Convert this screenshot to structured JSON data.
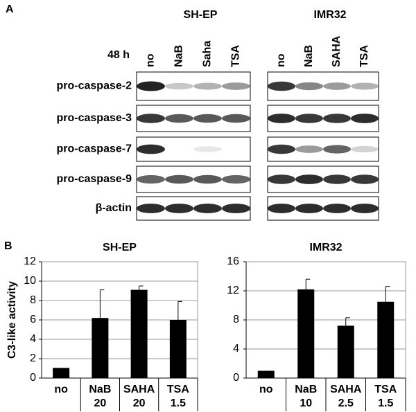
{
  "panel_a": {
    "label": "A",
    "time": "48 h",
    "cell_lines": [
      {
        "name": "SH-EP",
        "lanes": [
          "no",
          "NaB",
          "Saha",
          "TSA"
        ]
      },
      {
        "name": "IMR32",
        "lanes": [
          "no",
          "NaB",
          "SAHA",
          "TSA"
        ]
      }
    ],
    "proteins": [
      "pro-caspase-2",
      "pro-caspase-3",
      "pro-caspase-7",
      "pro-caspase-9",
      "β-actin"
    ]
  },
  "panel_b": {
    "label": "B"
  },
  "chart_data": [
    {
      "type": "bar",
      "title": "SH-EP",
      "y_label": "C3-like activity",
      "categories": [
        "no",
        "NaB",
        "SAHA",
        "TSA"
      ],
      "doses": [
        null,
        "20",
        "20",
        "1.5"
      ],
      "values": [
        1.05,
        6.2,
        9.1,
        6.0
      ],
      "errors": [
        null,
        2.9,
        0.4,
        1.9
      ],
      "color": "#000000",
      "ylim": [
        0,
        12
      ],
      "yticks": [
        0,
        2,
        4,
        6,
        8,
        10,
        12
      ],
      "grid": true
    },
    {
      "type": "bar",
      "title": "IMR32",
      "categories": [
        "no",
        "NaB",
        "SAHA",
        "TSA"
      ],
      "doses": [
        null,
        "10",
        "2.5",
        "1.5"
      ],
      "values": [
        1.0,
        12.2,
        7.2,
        10.5
      ],
      "errors": [
        null,
        1.4,
        1.1,
        2.1
      ],
      "color": "#000000",
      "ylim": [
        0,
        16
      ],
      "yticks": [
        0,
        4,
        8,
        12,
        16
      ],
      "grid": true
    }
  ]
}
